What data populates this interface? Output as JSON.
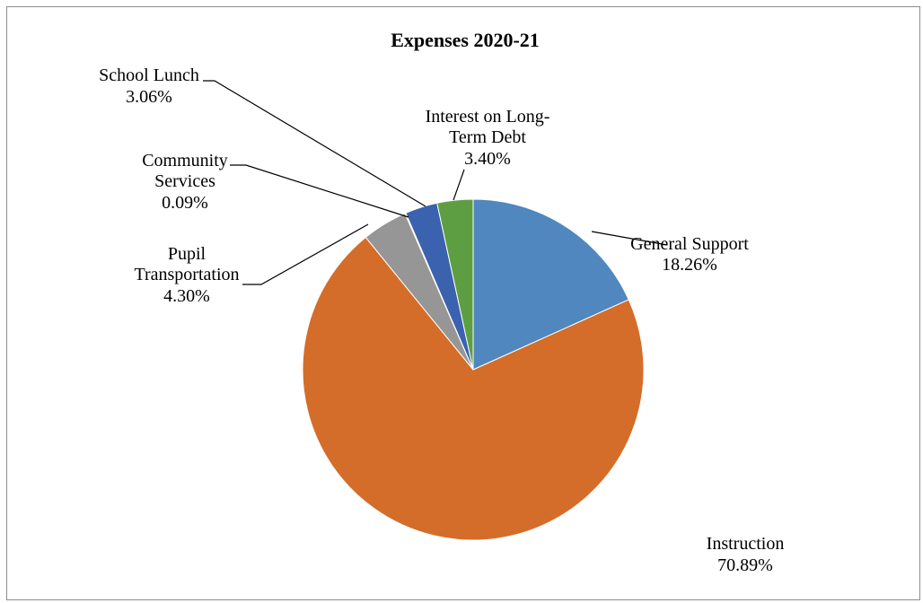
{
  "chart_data": {
    "type": "pie",
    "title": "Expenses 2020-21",
    "slices": [
      {
        "name": "General Support",
        "value": 18.26,
        "label": "18.26%",
        "color": "#4f87be"
      },
      {
        "name": "Instruction",
        "value": 70.89,
        "label": "70.89%",
        "color": "#d46d29"
      },
      {
        "name": "Pupil Transportation",
        "value": 4.3,
        "label": "4.30%",
        "color": "#969696"
      },
      {
        "name": "Community Services",
        "value": 0.09,
        "label": "0.09%",
        "color": "#e6b800"
      },
      {
        "name": "School Lunch",
        "value": 3.06,
        "label": "3.06%",
        "color": "#3b62ae"
      },
      {
        "name": "Interest on Long-Term Debt",
        "value": 3.4,
        "label": "3.40%",
        "color": "#5e9e43"
      }
    ],
    "legend": "none",
    "data_labels": "outside-with-leader-lines"
  }
}
